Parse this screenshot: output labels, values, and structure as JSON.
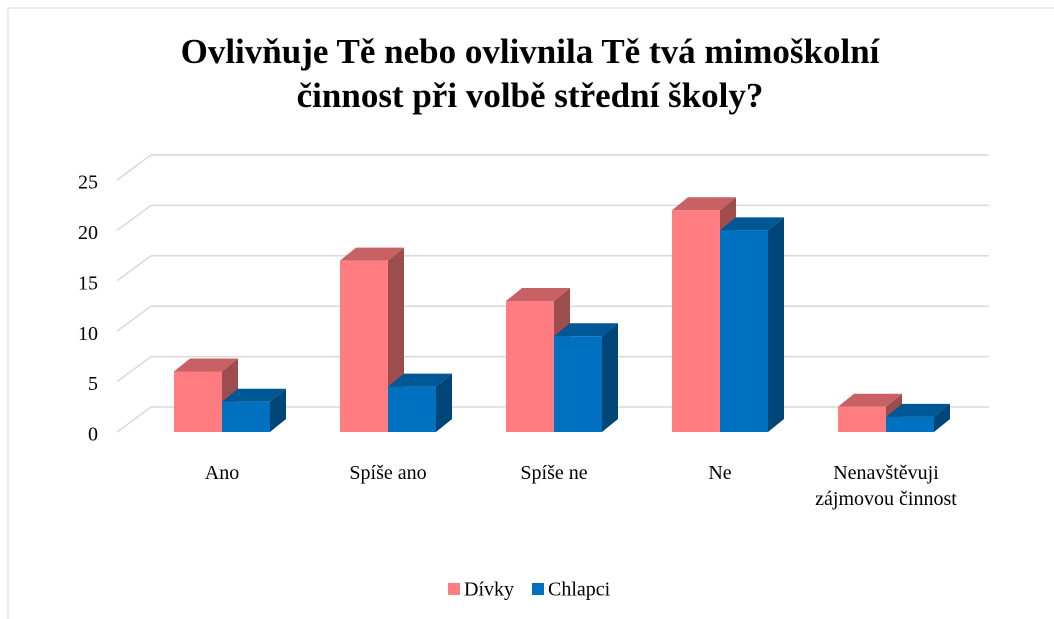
{
  "chart_data": {
    "type": "bar3d",
    "title": "Ovlivňuje Tě nebo ovlivnila Tě tvá mimoškolní činnost při volbě střední školy?",
    "categories": [
      "Ano",
      "Spíše ano",
      "Spíše ne",
      "Ne",
      "Nenavštěvuji zájmovou činnost"
    ],
    "series": [
      {
        "name": "Dívky",
        "color": "#ff7c80",
        "values": [
          6,
          17,
          13,
          22,
          2.5
        ]
      },
      {
        "name": "Chlapci",
        "color": "#0070c0",
        "values": [
          3,
          4.5,
          9.5,
          20,
          1.5
        ]
      }
    ],
    "ylim": [
      0,
      25
    ],
    "yticks": [
      0,
      5,
      10,
      15,
      20,
      25
    ],
    "grid": true,
    "legend": "bottom"
  }
}
